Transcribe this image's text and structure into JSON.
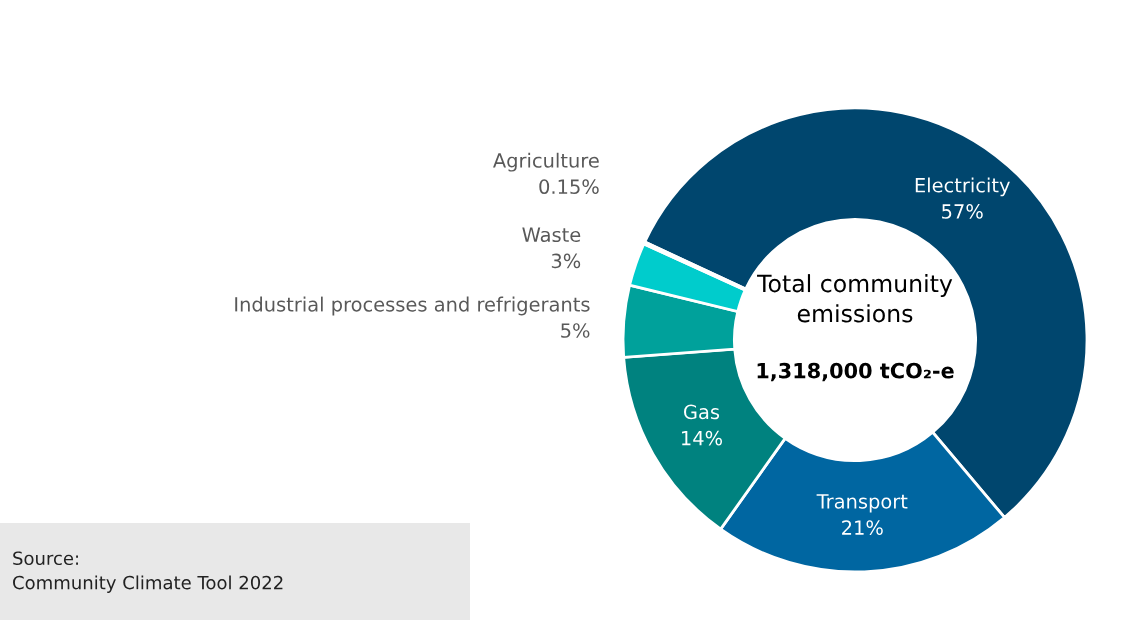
{
  "chart_data": {
    "type": "donut",
    "categories": [
      "Electricity",
      "Transport",
      "Gas",
      "Industrial processes and refrigerants",
      "Waste",
      "Agriculture"
    ],
    "values": [
      57,
      21,
      14,
      5,
      3,
      0.15
    ],
    "colors": [
      "#00466e",
      "#0066a1",
      "#00827f",
      "#00a19b",
      "#00cccc",
      "#b4b4b4"
    ],
    "value_labels": [
      "57%",
      "21%",
      "14%",
      "5%",
      "3%",
      "0.15%"
    ],
    "title": "Total community emissions",
    "subtitle": "1,318,000 tCO₂-e",
    "annotations": [
      "Source:\nCommunity Climate Tool 2022"
    ],
    "legend": false
  }
}
